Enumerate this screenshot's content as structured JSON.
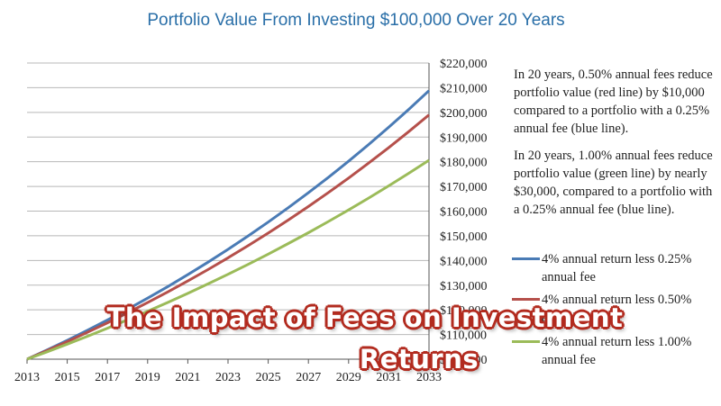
{
  "chart_data": {
    "type": "line",
    "title": "Portfolio Value From Investing $100,000 Over 20 Years",
    "x": [
      2013,
      2014,
      2015,
      2016,
      2017,
      2018,
      2019,
      2020,
      2021,
      2022,
      2023,
      2024,
      2025,
      2026,
      2027,
      2028,
      2029,
      2030,
      2031,
      2032,
      2033
    ],
    "x_ticks": [
      "2013",
      "2015",
      "2017",
      "2019",
      "2021",
      "2023",
      "2025",
      "2027",
      "2029",
      "2031",
      "2033"
    ],
    "y_ticks": [
      "$100,000",
      "$110,000",
      "$120,000",
      "$130,000",
      "$140,000",
      "$150,000",
      "$160,000",
      "$170,000",
      "$180,000",
      "$190,000",
      "$200,000",
      "$210,000",
      "$220,000"
    ],
    "ylim": [
      100000,
      220000
    ],
    "grid": true,
    "series": [
      {
        "name": "4% annual return less 0.25% annual fee",
        "color": "#4a7bb5",
        "values": [
          100000,
          103750,
          107641,
          111677,
          115865,
          120210,
          124718,
          129395,
          134247,
          139281,
          144504,
          149923,
          155546,
          161378,
          167430,
          173709,
          180223,
          186981,
          193993,
          201268,
          208815
        ]
      },
      {
        "name": "4% annual return less 0.50% annual fee",
        "color": "#b5504b",
        "values": [
          100000,
          103500,
          107123,
          110872,
          114752,
          118769,
          122926,
          127228,
          131681,
          136290,
          141060,
          145997,
          151107,
          156396,
          161869,
          167535,
          173399,
          179468,
          185749,
          192250,
          198979
        ]
      },
      {
        "name": "4% annual return less 1.00% annual fee",
        "color": "#9bbb59",
        "values": [
          100000,
          103000,
          106090,
          109273,
          112551,
          115927,
          119405,
          122987,
          126677,
          130477,
          134392,
          138423,
          142576,
          146853,
          151259,
          155797,
          160471,
          165285,
          170243,
          175351,
          180611
        ]
      }
    ]
  },
  "annotations": [
    "In 20 years, 0.50% annual fees reduce portfolio value (red line) by $10,000 compared to a portfolio with a 0.25% annual fee (blue line).",
    "In 20 years, 1.00% annual fees reduce portfolio value (green line) by nearly $30,000, compared to a portfolio with a 0.25% annual fee (blue line)."
  ],
  "overlay": {
    "line1": "The Impact of Fees on Investment",
    "line2": "Returns"
  }
}
